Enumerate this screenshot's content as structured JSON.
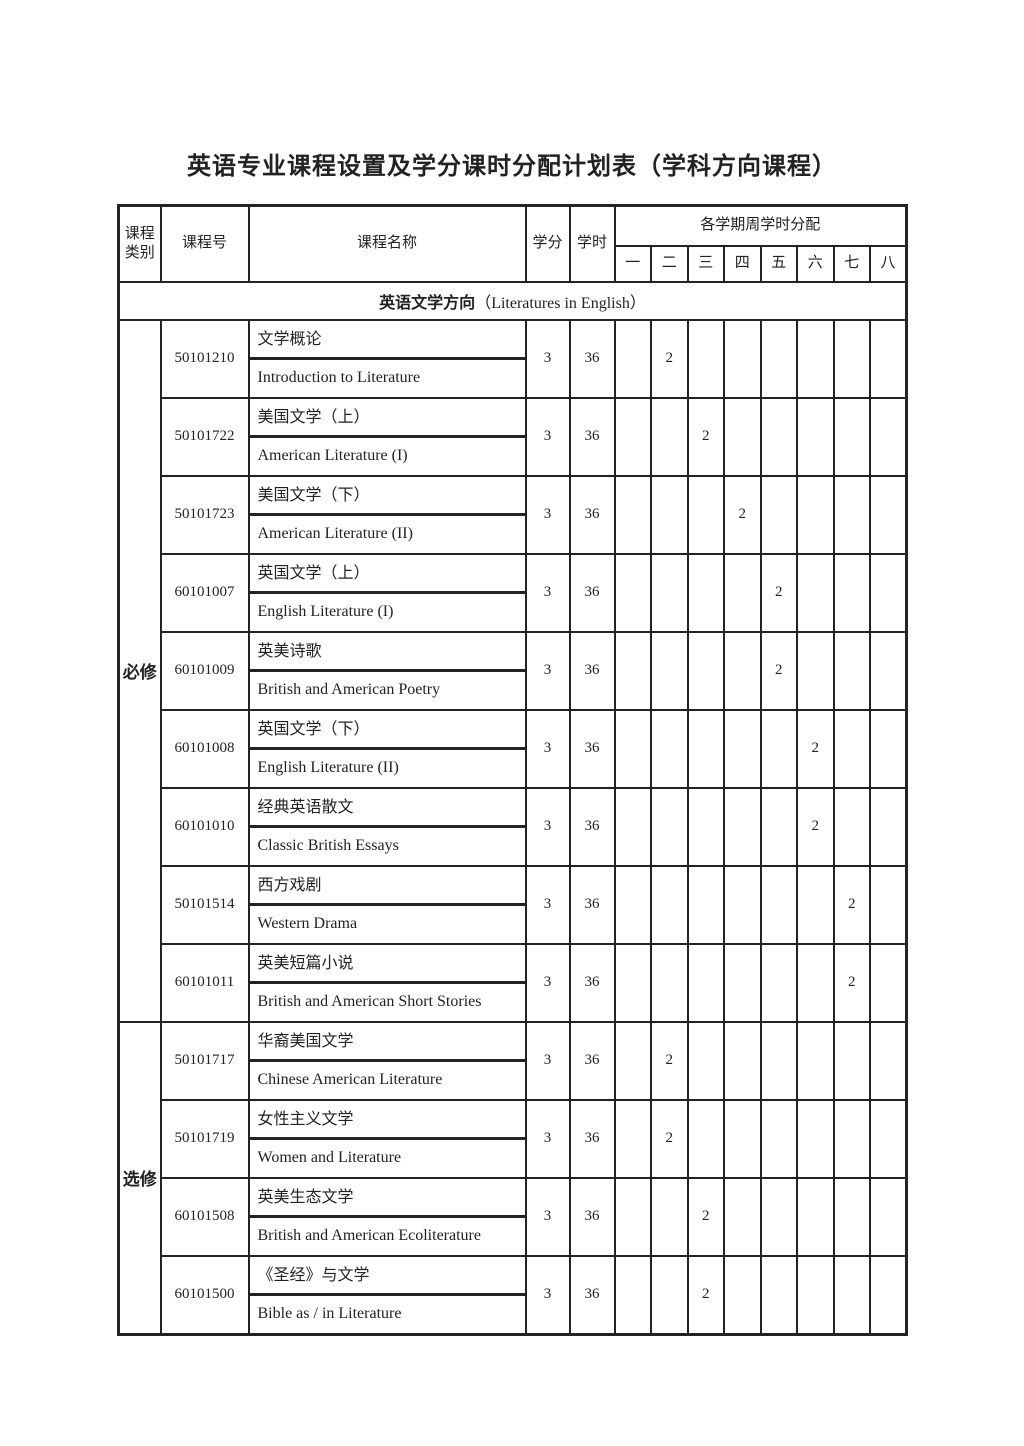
{
  "title": "英语专业课程设置及学分课时分配计划表（学科方向课程）",
  "table": {
    "header": {
      "category": "课程类别",
      "course_no": "课程号",
      "course_name": "课程名称",
      "credits": "学分",
      "hours": "学时",
      "semester_group": "各学期周学时分配",
      "semesters": [
        "一",
        "二",
        "三",
        "四",
        "五",
        "六",
        "七",
        "八"
      ]
    },
    "section": {
      "zh": "英语文学方向",
      "en": "（Literatures in English）"
    },
    "categories": [
      {
        "label": "必修",
        "start": 0,
        "count": 9
      },
      {
        "label": "选修",
        "start": 9,
        "count": 4
      }
    ],
    "courses": [
      {
        "no": "50101210",
        "zh": "文学概论",
        "en": "Introduction to Literature",
        "credits": "3",
        "hours": "36",
        "semester": 2,
        "weekly": "2"
      },
      {
        "no": "50101722",
        "zh": "美国文学（上）",
        "en": "American Literature (I)",
        "credits": "3",
        "hours": "36",
        "semester": 3,
        "weekly": "2"
      },
      {
        "no": "50101723",
        "zh": "美国文学（下）",
        "en": "American Literature (II)",
        "credits": "3",
        "hours": "36",
        "semester": 4,
        "weekly": "2"
      },
      {
        "no": "60101007",
        "zh": "英国文学（上）",
        "en": "English Literature (I)",
        "credits": "3",
        "hours": "36",
        "semester": 5,
        "weekly": "2"
      },
      {
        "no": "60101009",
        "zh": "英美诗歌",
        "en": "British and American Poetry",
        "credits": "3",
        "hours": "36",
        "semester": 5,
        "weekly": "2"
      },
      {
        "no": "60101008",
        "zh": "英国文学（下）",
        "en": "English Literature (II)",
        "credits": "3",
        "hours": "36",
        "semester": 6,
        "weekly": "2"
      },
      {
        "no": "60101010",
        "zh": "经典英语散文",
        "en": "Classic British Essays",
        "credits": "3",
        "hours": "36",
        "semester": 6,
        "weekly": "2"
      },
      {
        "no": "50101514",
        "zh": "西方戏剧",
        "en": "Western Drama",
        "credits": "3",
        "hours": "36",
        "semester": 7,
        "weekly": "2"
      },
      {
        "no": "60101011",
        "zh": "英美短篇小说",
        "en": "British and American Short Stories",
        "credits": "3",
        "hours": "36",
        "semester": 7,
        "weekly": "2"
      },
      {
        "no": "50101717",
        "zh": "华裔美国文学",
        "en": "Chinese American Literature",
        "credits": "3",
        "hours": "36",
        "semester": 2,
        "weekly": "2"
      },
      {
        "no": "50101719",
        "zh": "女性主义文学",
        "en": "Women and Literature",
        "credits": "3",
        "hours": "36",
        "semester": 2,
        "weekly": "2"
      },
      {
        "no": "60101508",
        "zh": "英美生态文学",
        "en": "British and American Ecoliterature",
        "credits": "3",
        "hours": "36",
        "semester": 3,
        "weekly": "2"
      },
      {
        "no": "60101500",
        "zh": "《圣经》与文学",
        "en": "Bible as / in Literature",
        "credits": "3",
        "hours": "36",
        "semester": 3,
        "weekly": "2"
      }
    ]
  },
  "colors": {
    "ink": "#222222",
    "paper": "#ffffff"
  }
}
